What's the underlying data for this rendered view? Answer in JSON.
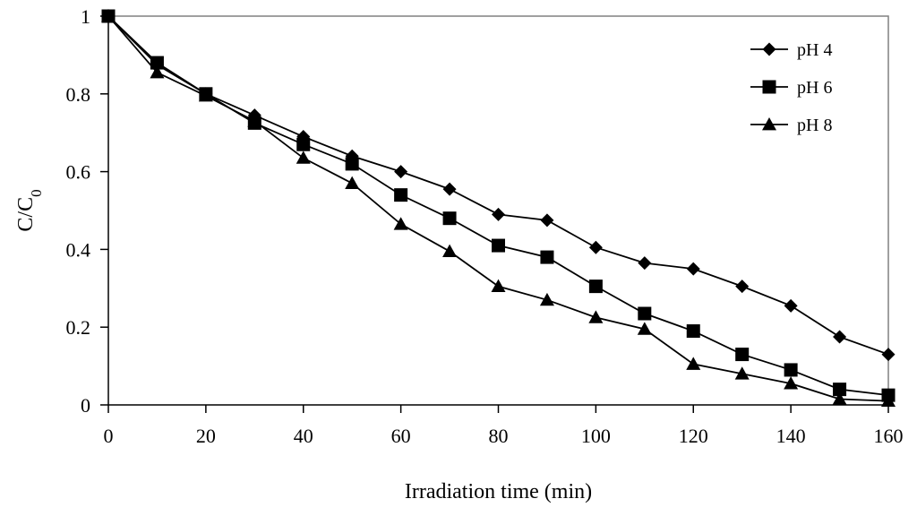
{
  "chart_data": {
    "type": "line",
    "title": "",
    "xlabel": "Irradiation time (min)",
    "ylabel_main": "C/C",
    "ylabel_sub": "0",
    "xlim": [
      0,
      160
    ],
    "ylim": [
      0,
      1
    ],
    "xticks": [
      0,
      20,
      40,
      60,
      80,
      100,
      120,
      140,
      160
    ],
    "yticks": [
      0,
      0.2,
      0.4,
      0.6,
      0.8,
      1
    ],
    "ytick_labels": [
      "0",
      "0.2",
      "0.4",
      "0.6",
      "0.8",
      "1"
    ],
    "grid": false,
    "legend_position": "top-right",
    "x": [
      0,
      10,
      20,
      30,
      40,
      50,
      60,
      70,
      80,
      90,
      100,
      110,
      120,
      130,
      140,
      150,
      160
    ],
    "series": [
      {
        "name": "pH 4",
        "marker": "diamond",
        "values": [
          1.0,
          0.875,
          0.8,
          0.745,
          0.69,
          0.64,
          0.6,
          0.555,
          0.49,
          0.475,
          0.405,
          0.365,
          0.35,
          0.305,
          0.255,
          0.175,
          0.13
        ]
      },
      {
        "name": "pH 6",
        "marker": "square",
        "values": [
          1.0,
          0.88,
          0.8,
          0.725,
          0.67,
          0.62,
          0.54,
          0.48,
          0.41,
          0.38,
          0.305,
          0.235,
          0.19,
          0.13,
          0.09,
          0.04,
          0.025
        ]
      },
      {
        "name": "pH 8",
        "marker": "triangle",
        "values": [
          1.0,
          0.855,
          0.795,
          0.73,
          0.635,
          0.57,
          0.465,
          0.395,
          0.305,
          0.27,
          0.225,
          0.195,
          0.105,
          0.08,
          0.055,
          0.015,
          0.01
        ]
      }
    ],
    "colors": {
      "line": "#000000",
      "frame": "#808080",
      "background": "#ffffff"
    }
  }
}
